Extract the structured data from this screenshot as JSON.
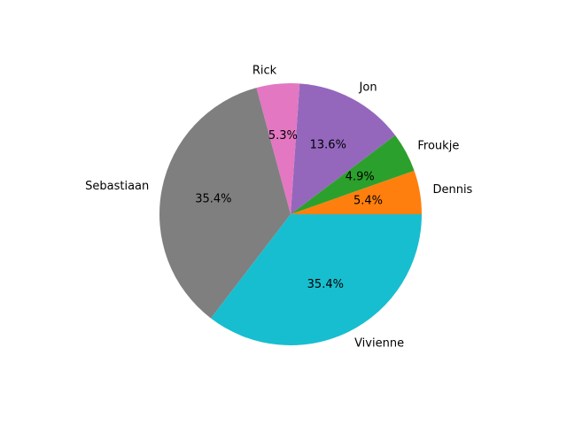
{
  "chart_data": {
    "type": "pie",
    "start_angle_deg": 0,
    "direction": "counterclockwise",
    "slices": [
      {
        "label": "Dennis",
        "value": 5.4,
        "pct_label": "5.4%",
        "color": "#ff7f0e"
      },
      {
        "label": "Froukje",
        "value": 4.9,
        "pct_label": "4.9%",
        "color": "#2ca02c"
      },
      {
        "label": "Jon",
        "value": 13.6,
        "pct_label": "13.6%",
        "color": "#9467bd"
      },
      {
        "label": "Rick",
        "value": 5.3,
        "pct_label": "5.3%",
        "color": "#e377c2"
      },
      {
        "label": "Sebastiaan",
        "value": 35.4,
        "pct_label": "35.4%",
        "color": "#7f7f7f"
      },
      {
        "label": "Vivienne",
        "value": 35.4,
        "pct_label": "35.4%",
        "color": "#17becf"
      }
    ]
  }
}
